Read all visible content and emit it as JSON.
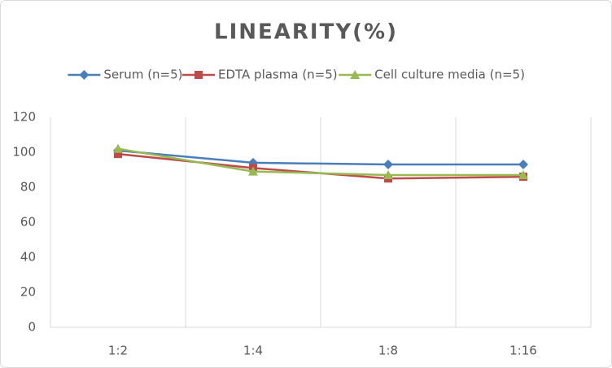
{
  "chart_data": {
    "type": "line",
    "title": "LINEARITY(%)",
    "categories": [
      "1:2",
      "1:4",
      "1:8",
      "1:16"
    ],
    "series": [
      {
        "name": "Serum (n=5)",
        "color": "#4a7ebb",
        "marker": "diamond",
        "values": [
          101,
          94,
          93,
          93
        ]
      },
      {
        "name": "EDTA plasma (n=5)",
        "color": "#be4b48",
        "marker": "square",
        "values": [
          99,
          91,
          85,
          86
        ]
      },
      {
        "name": "Cell culture media (n=5)",
        "color": "#98b954",
        "marker": "triangle",
        "values": [
          102,
          89,
          87,
          87
        ]
      }
    ],
    "ylim": [
      0,
      120
    ],
    "yticks": [
      0,
      20,
      40,
      60,
      80,
      100,
      120
    ],
    "grid": "x",
    "legend": "top"
  }
}
